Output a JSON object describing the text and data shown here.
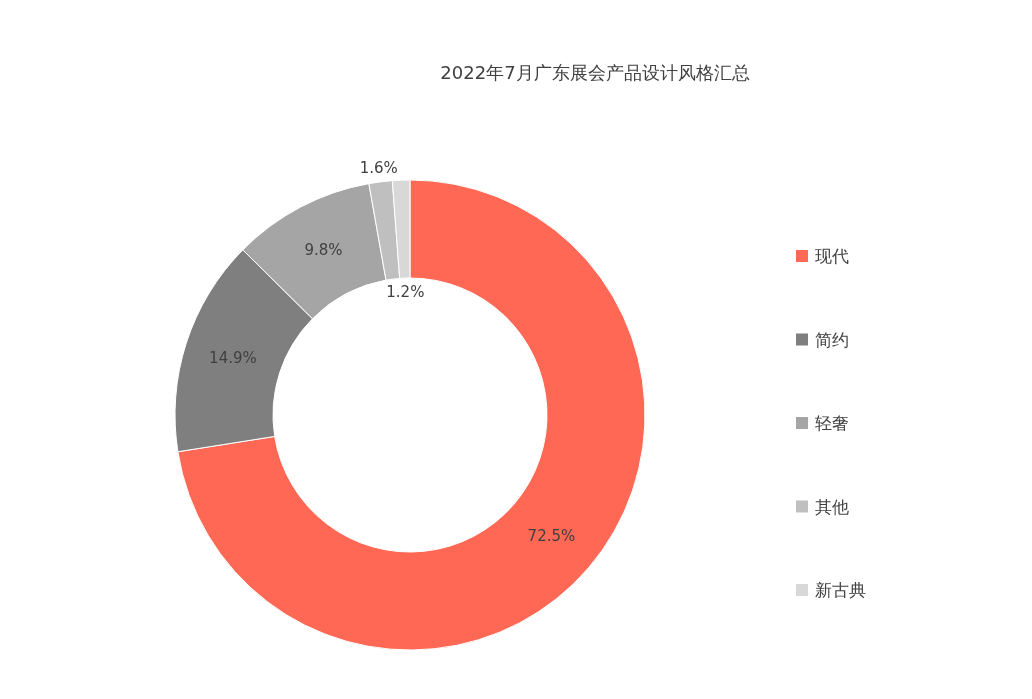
{
  "chart_data": {
    "type": "donut",
    "title": "2022年7月广东展会产品设计风格汇总",
    "categories": [
      "现代",
      "简约",
      "轻奢",
      "其他",
      "新古典"
    ],
    "values": [
      72.5,
      14.9,
      9.8,
      1.6,
      1.2
    ],
    "colors": [
      "#fe6854",
      "#7f7f7f",
      "#a5a5a5",
      "#bfbfbf",
      "#d8d8d8"
    ],
    "value_labels": [
      "72.5%",
      "14.9%",
      "9.8%",
      "1.6%",
      "1.2%"
    ],
    "legend": "right"
  }
}
